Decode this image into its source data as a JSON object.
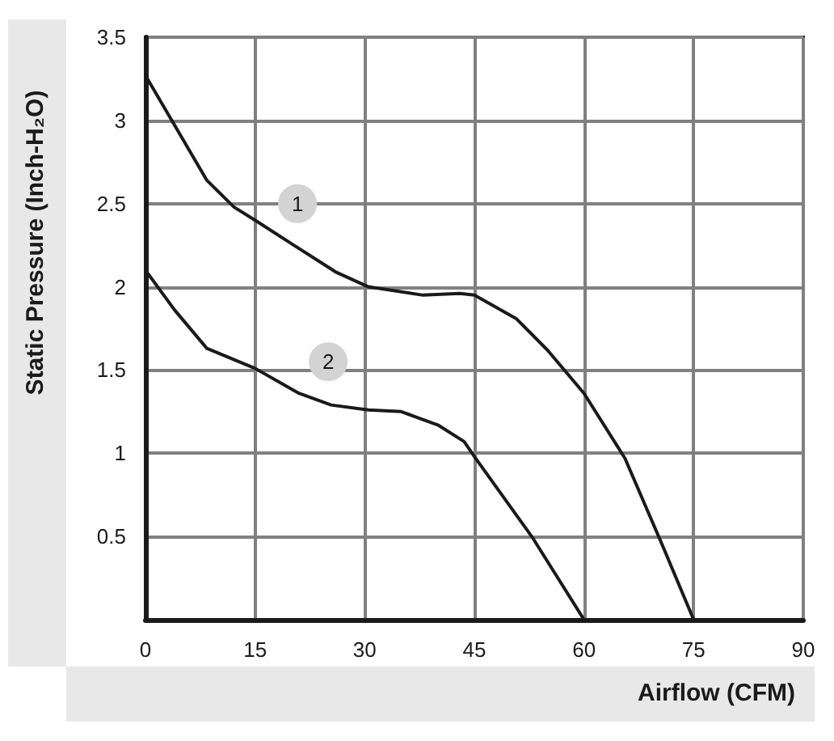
{
  "chart_data": {
    "type": "line",
    "xlabel": "Airflow (CFM)",
    "ylabel": "Static Pressure (Inch-H₂O)",
    "xlim": [
      0,
      90
    ],
    "xticks": [
      0,
      15,
      30,
      45,
      60,
      75,
      90
    ],
    "ylim": [
      0,
      3.5
    ],
    "yticks": [
      {
        "value": 0,
        "label": null
      },
      0.5,
      1,
      1.5,
      2,
      2.5,
      3,
      3.5
    ],
    "grid": true,
    "marker": "none",
    "line_style": "solid",
    "series": [
      {
        "color": "#1a1a1a",
        "x": [
          0,
          4,
          8.4,
          12.1,
          15,
          20.3,
          26,
          30.5,
          38,
          43,
          45,
          50.7,
          55,
          60,
          65.6,
          70.7,
          75
        ],
        "values": [
          3.27,
          2.97,
          2.64,
          2.48,
          2.4,
          2.25,
          2.09,
          2.0,
          1.95,
          1.96,
          1.95,
          1.81,
          1.62,
          1.36,
          0.97,
          0.45,
          0
        ]
      },
      {
        "color": "#1a1a1a",
        "x": [
          0,
          4,
          8.4,
          15,
          21,
          25.4,
          30.5,
          35,
          40,
          43.6,
          45,
          53,
          60
        ],
        "values": [
          2.1,
          1.86,
          1.63,
          1.51,
          1.36,
          1.29,
          1.26,
          1.25,
          1.17,
          1.07,
          0.98,
          0.49,
          0
        ]
      }
    ],
    "annotations": [
      {
        "text": "1",
        "x": 20.8,
        "y": 2.5
      },
      {
        "text": "2",
        "x": 25,
        "y": 1.55
      }
    ]
  }
}
